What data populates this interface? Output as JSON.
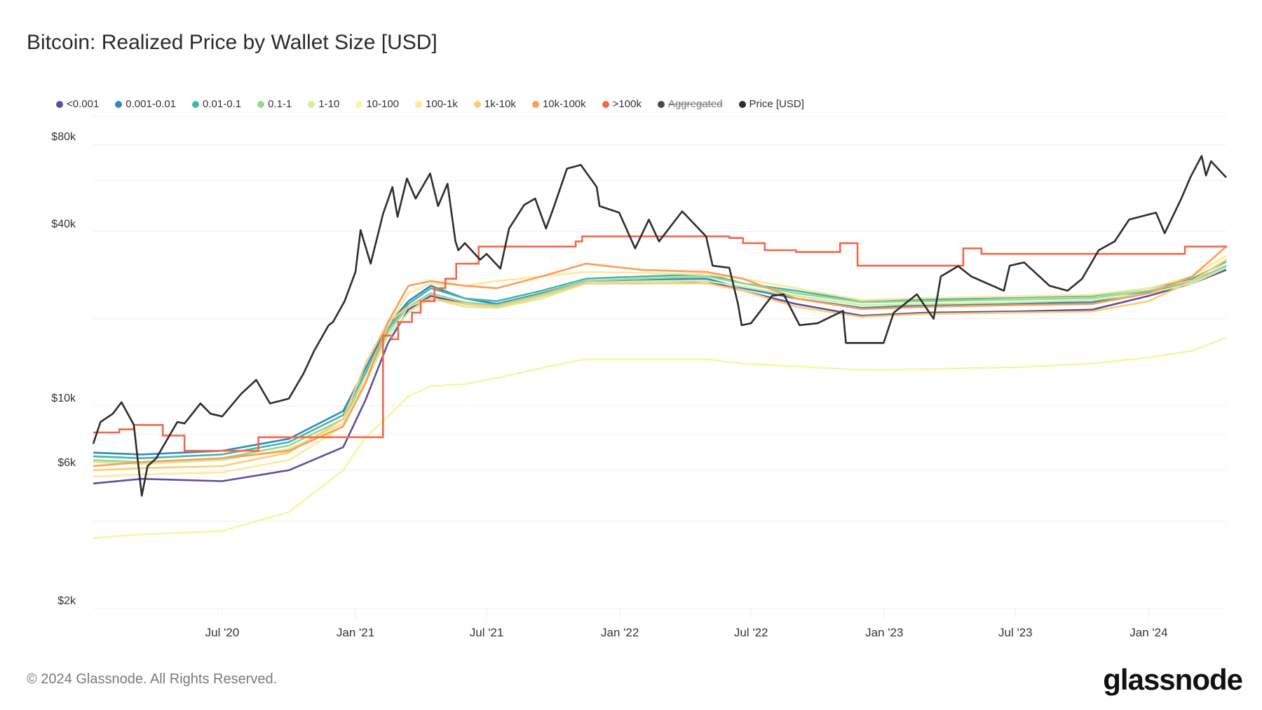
{
  "footer": {
    "copyright": "© 2024 Glassnode. All Rights Reserved.",
    "logo": "glassnode"
  },
  "chart_data": {
    "type": "line",
    "title": "Bitcoin: Realized Price by Wallet Size [USD]",
    "yscale": "log",
    "ylim": [
      2000,
      100000
    ],
    "xlim": [
      "2020-01-05",
      "2024-04-17"
    ],
    "grid": true,
    "legend_position": "top",
    "y_ticks": [
      {
        "value": 80000,
        "label": "$80k"
      },
      {
        "value": 40000,
        "label": "$40k"
      },
      {
        "value": 10000,
        "label": "$10k"
      },
      {
        "value": 6000,
        "label": "$6k"
      },
      {
        "value": 2000,
        "label": "$2k"
      }
    ],
    "y_gridlines": [
      100000,
      80000,
      60000,
      40000,
      20000,
      10000,
      8000,
      6000,
      4000,
      2000
    ],
    "x_ticks": [
      {
        "date": "2020-07-01",
        "label": "Jul '20"
      },
      {
        "date": "2021-01-01",
        "label": "Jan '21"
      },
      {
        "date": "2021-07-01",
        "label": "Jul '21"
      },
      {
        "date": "2022-01-01",
        "label": "Jan '22"
      },
      {
        "date": "2022-07-01",
        "label": "Jul '22"
      },
      {
        "date": "2023-01-01",
        "label": "Jan '23"
      },
      {
        "date": "2023-07-01",
        "label": "Jul '23"
      },
      {
        "date": "2024-01-01",
        "label": "Jan '24"
      }
    ],
    "cohort_dates": [
      "2020-01-05",
      "2020-03-12",
      "2020-07-01",
      "2020-10-01",
      "2020-12-15",
      "2021-01-15",
      "2021-02-15",
      "2021-03-15",
      "2021-04-15",
      "2021-06-01",
      "2021-07-15",
      "2021-09-15",
      "2021-11-15",
      "2022-02-01",
      "2022-05-01",
      "2022-06-20",
      "2022-09-01",
      "2022-12-01",
      "2023-03-01",
      "2023-07-01",
      "2023-10-15",
      "2024-01-01",
      "2024-03-01",
      "2024-04-17"
    ],
    "series": [
      {
        "name": "<0.001",
        "color": "#5e4fa2",
        "values": [
          5400,
          5600,
          5500,
          6000,
          7200,
          10500,
          16500,
          21500,
          24000,
          22500,
          22000,
          24000,
          26500,
          26500,
          27000,
          25000,
          22500,
          20500,
          21000,
          21200,
          21500,
          24000,
          26500,
          29500
        ]
      },
      {
        "name": "0.001-0.01",
        "color": "#3288bd",
        "values": [
          6900,
          6800,
          7000,
          7700,
          9600,
          13500,
          19000,
          23000,
          26000,
          23500,
          22500,
          24500,
          27000,
          27300,
          27500,
          25500,
          23500,
          21800,
          22300,
          22600,
          22800,
          24800,
          27000,
          30500
        ]
      },
      {
        "name": "0.01-0.1",
        "color": "#48b6a9",
        "values": [
          6700,
          6600,
          6800,
          7500,
          9300,
          13000,
          18500,
          22500,
          25500,
          23500,
          23000,
          25000,
          27500,
          28000,
          28500,
          26500,
          25000,
          23000,
          23300,
          23700,
          24000,
          25500,
          27500,
          31500
        ]
      },
      {
        "name": "0.1-1",
        "color": "#99d594",
        "values": [
          6500,
          6400,
          6600,
          7300,
          9000,
          12500,
          18000,
          22000,
          24500,
          22800,
          22300,
          24300,
          27000,
          27500,
          28000,
          26500,
          24500,
          22800,
          23000,
          23300,
          23600,
          25000,
          27000,
          30500
        ]
      },
      {
        "name": "1-10",
        "color": "#d3ed9c",
        "values": [
          6400,
          6300,
          6500,
          7100,
          8700,
          12000,
          17500,
          21000,
          23500,
          22000,
          21800,
          23500,
          26500,
          26800,
          27000,
          25800,
          24000,
          22300,
          22500,
          22800,
          23200,
          24500,
          26500,
          30000
        ]
      },
      {
        "name": "10-100",
        "color": "#f4f7a2",
        "values": [
          3500,
          3600,
          3700,
          4300,
          6000,
          7800,
          9200,
          10800,
          11700,
          11900,
          12500,
          13500,
          14500,
          14500,
          14500,
          14000,
          13700,
          13300,
          13400,
          13600,
          14000,
          14700,
          15500,
          17200
        ]
      },
      {
        "name": "100-1k",
        "color": "#fee99a",
        "values": [
          5700,
          5800,
          5900,
          6500,
          8500,
          12500,
          19000,
          24500,
          26500,
          26000,
          27000,
          28000,
          29000,
          28800,
          28500,
          27500,
          25500,
          23200,
          23600,
          23900,
          24200,
          25500,
          28000,
          33000
        ]
      },
      {
        "name": "1k-10k",
        "color": "#fdcd75",
        "values": [
          6000,
          6100,
          6200,
          6900,
          9000,
          14000,
          19500,
          22000,
          23500,
          22500,
          22000,
          24000,
          26500,
          26500,
          26500,
          25000,
          22000,
          20300,
          20800,
          21000,
          21200,
          23000,
          27000,
          32000
        ]
      },
      {
        "name": "10k-100k",
        "color": "#fc9d58",
        "values": [
          6200,
          6400,
          6600,
          7000,
          8500,
          12000,
          19500,
          26000,
          27000,
          26000,
          25500,
          28000,
          31000,
          29500,
          29000,
          27500,
          23500,
          21600,
          22000,
          22300,
          22500,
          24500,
          28000,
          35500
        ]
      }
    ],
    "step_series": {
      "name": ">100k",
      "color": "#f26849",
      "points": [
        [
          "2020-01-05",
          8100
        ],
        [
          "2020-02-10",
          8300
        ],
        [
          "2020-03-01",
          8600
        ],
        [
          "2020-04-10",
          7900
        ],
        [
          "2020-05-10",
          7000
        ],
        [
          "2020-08-20",
          7800
        ],
        [
          "2021-02-08",
          17500
        ],
        [
          "2021-02-20",
          17000
        ],
        [
          "2021-03-01",
          19500
        ],
        [
          "2021-03-20",
          21000
        ],
        [
          "2021-04-01",
          23000
        ],
        [
          "2021-04-20",
          25500
        ],
        [
          "2021-05-05",
          27500
        ],
        [
          "2021-05-20",
          31000
        ],
        [
          "2021-06-20",
          35500
        ],
        [
          "2021-11-01",
          37000
        ],
        [
          "2021-11-10",
          38500
        ],
        [
          "2022-06-01",
          38000
        ],
        [
          "2022-06-20",
          36500
        ],
        [
          "2022-07-20",
          34500
        ],
        [
          "2022-09-01",
          34000
        ],
        [
          "2022-11-01",
          36500
        ],
        [
          "2022-11-25",
          30500
        ],
        [
          "2023-04-20",
          35000
        ],
        [
          "2023-05-15",
          33500
        ],
        [
          "2024-02-20",
          35500
        ],
        [
          "2024-04-17",
          35800
        ]
      ]
    },
    "hidden_series": {
      "name": "Aggregated",
      "color": "#4a4a4a",
      "hidden": true
    },
    "price_series": {
      "name": "Price [USD]",
      "color": "#2e2e2e",
      "points": [
        [
          "2020-01-05",
          7400
        ],
        [
          "2020-01-15",
          8800
        ],
        [
          "2020-02-01",
          9400
        ],
        [
          "2020-02-13",
          10300
        ],
        [
          "2020-03-01",
          8600
        ],
        [
          "2020-03-12",
          4900
        ],
        [
          "2020-03-20",
          6200
        ],
        [
          "2020-04-01",
          6600
        ],
        [
          "2020-04-30",
          8800
        ],
        [
          "2020-05-10",
          8700
        ],
        [
          "2020-06-01",
          10200
        ],
        [
          "2020-06-15",
          9400
        ],
        [
          "2020-07-01",
          9200
        ],
        [
          "2020-07-27",
          11000
        ],
        [
          "2020-08-17",
          12300
        ],
        [
          "2020-09-05",
          10200
        ],
        [
          "2020-10-01",
          10600
        ],
        [
          "2020-10-21",
          12900
        ],
        [
          "2020-11-05",
          15500
        ],
        [
          "2020-11-25",
          19000
        ],
        [
          "2020-12-01",
          19500
        ],
        [
          "2020-12-17",
          23000
        ],
        [
          "2021-01-01",
          29000
        ],
        [
          "2021-01-08",
          40500
        ],
        [
          "2021-01-22",
          31000
        ],
        [
          "2021-02-08",
          46000
        ],
        [
          "2021-02-21",
          57000
        ],
        [
          "2021-02-28",
          45000
        ],
        [
          "2021-03-13",
          61000
        ],
        [
          "2021-03-25",
          52000
        ],
        [
          "2021-04-14",
          63500
        ],
        [
          "2021-04-25",
          49000
        ],
        [
          "2021-05-08",
          58500
        ],
        [
          "2021-05-19",
          37000
        ],
        [
          "2021-05-23",
          34500
        ],
        [
          "2021-06-01",
          36500
        ],
        [
          "2021-06-22",
          32000
        ],
        [
          "2021-07-01",
          33500
        ],
        [
          "2021-07-20",
          29800
        ],
        [
          "2021-08-01",
          41000
        ],
        [
          "2021-08-22",
          49500
        ],
        [
          "2021-09-06",
          52000
        ],
        [
          "2021-09-21",
          41000
        ],
        [
          "2021-10-01",
          48000
        ],
        [
          "2021-10-20",
          66000
        ],
        [
          "2021-11-08",
          68000
        ],
        [
          "2021-11-30",
          57000
        ],
        [
          "2021-12-04",
          49000
        ],
        [
          "2021-12-31",
          46500
        ],
        [
          "2022-01-22",
          35000
        ],
        [
          "2022-02-10",
          44000
        ],
        [
          "2022-02-24",
          37000
        ],
        [
          "2022-03-28",
          47000
        ],
        [
          "2022-04-30",
          38500
        ],
        [
          "2022-05-09",
          30500
        ],
        [
          "2022-06-01",
          30000
        ],
        [
          "2022-06-13",
          22500
        ],
        [
          "2022-06-18",
          19000
        ],
        [
          "2022-07-01",
          19300
        ],
        [
          "2022-07-30",
          24000
        ],
        [
          "2022-08-15",
          24300
        ],
        [
          "2022-09-06",
          19000
        ],
        [
          "2022-10-01",
          19300
        ],
        [
          "2022-11-05",
          21300
        ],
        [
          "2022-11-09",
          16500
        ],
        [
          "2022-12-31",
          16500
        ],
        [
          "2023-01-14",
          21000
        ],
        [
          "2023-02-15",
          24300
        ],
        [
          "2023-03-10",
          20000
        ],
        [
          "2023-03-20",
          28000
        ],
        [
          "2023-04-13",
          30400
        ],
        [
          "2023-05-01",
          28000
        ],
        [
          "2023-06-15",
          25000
        ],
        [
          "2023-06-23",
          30500
        ],
        [
          "2023-07-13",
          31300
        ],
        [
          "2023-08-17",
          26000
        ],
        [
          "2023-09-11",
          25000
        ],
        [
          "2023-10-01",
          27500
        ],
        [
          "2023-10-24",
          34500
        ],
        [
          "2023-11-15",
          37000
        ],
        [
          "2023-12-05",
          44000
        ],
        [
          "2024-01-11",
          46500
        ],
        [
          "2024-01-23",
          39500
        ],
        [
          "2024-02-15",
          52000
        ],
        [
          "2024-02-28",
          62000
        ],
        [
          "2024-03-14",
          73000
        ],
        [
          "2024-03-20",
          62500
        ],
        [
          "2024-03-27",
          70000
        ],
        [
          "2024-04-13",
          63000
        ],
        [
          "2024-04-17",
          61500
        ]
      ]
    },
    "legend": [
      {
        "label": "<0.001",
        "color": "#5e4fa2"
      },
      {
        "label": "0.001-0.01",
        "color": "#3288bd"
      },
      {
        "label": "0.01-0.1",
        "color": "#48b6a9"
      },
      {
        "label": "0.1-1",
        "color": "#99d594"
      },
      {
        "label": "1-10",
        "color": "#d3ed9c"
      },
      {
        "label": "10-100",
        "color": "#f4f7a2"
      },
      {
        "label": "100-1k",
        "color": "#fee99a"
      },
      {
        "label": "1k-10k",
        "color": "#fdcd75"
      },
      {
        "label": "10k-100k",
        "color": "#fc9d58"
      },
      {
        "label": ">100k",
        "color": "#f26849"
      },
      {
        "label": "Aggregated",
        "color": "#4a4a4a",
        "hidden": true
      },
      {
        "label": "Price [USD]",
        "color": "#2e2e2e"
      }
    ]
  }
}
